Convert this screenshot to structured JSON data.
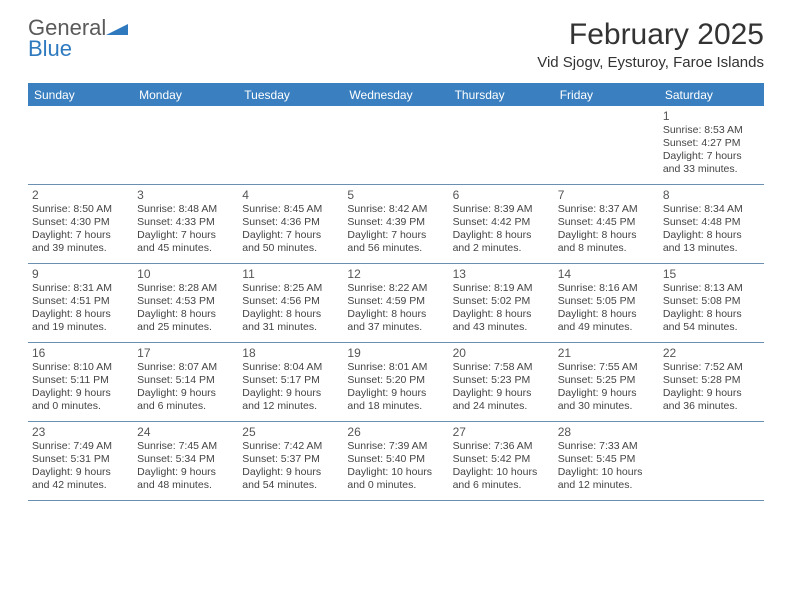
{
  "logo": {
    "text1": "General",
    "text2": "Blue"
  },
  "title": "February 2025",
  "location": "Vid Sjogv, Eysturoy, Faroe Islands",
  "colors": {
    "header_bg": "#3a7fbf",
    "header_text": "#ffffff",
    "divider": "#6a8fb0",
    "logo_gray": "#5a5a5a",
    "logo_blue": "#2f7abf"
  },
  "day_labels": [
    "Sunday",
    "Monday",
    "Tuesday",
    "Wednesday",
    "Thursday",
    "Friday",
    "Saturday"
  ],
  "weeks": [
    [
      null,
      null,
      null,
      null,
      null,
      null,
      {
        "n": "1",
        "sr": "Sunrise: 8:53 AM",
        "ss": "Sunset: 4:27 PM",
        "d1": "Daylight: 7 hours",
        "d2": "and 33 minutes."
      }
    ],
    [
      {
        "n": "2",
        "sr": "Sunrise: 8:50 AM",
        "ss": "Sunset: 4:30 PM",
        "d1": "Daylight: 7 hours",
        "d2": "and 39 minutes."
      },
      {
        "n": "3",
        "sr": "Sunrise: 8:48 AM",
        "ss": "Sunset: 4:33 PM",
        "d1": "Daylight: 7 hours",
        "d2": "and 45 minutes."
      },
      {
        "n": "4",
        "sr": "Sunrise: 8:45 AM",
        "ss": "Sunset: 4:36 PM",
        "d1": "Daylight: 7 hours",
        "d2": "and 50 minutes."
      },
      {
        "n": "5",
        "sr": "Sunrise: 8:42 AM",
        "ss": "Sunset: 4:39 PM",
        "d1": "Daylight: 7 hours",
        "d2": "and 56 minutes."
      },
      {
        "n": "6",
        "sr": "Sunrise: 8:39 AM",
        "ss": "Sunset: 4:42 PM",
        "d1": "Daylight: 8 hours",
        "d2": "and 2 minutes."
      },
      {
        "n": "7",
        "sr": "Sunrise: 8:37 AM",
        "ss": "Sunset: 4:45 PM",
        "d1": "Daylight: 8 hours",
        "d2": "and 8 minutes."
      },
      {
        "n": "8",
        "sr": "Sunrise: 8:34 AM",
        "ss": "Sunset: 4:48 PM",
        "d1": "Daylight: 8 hours",
        "d2": "and 13 minutes."
      }
    ],
    [
      {
        "n": "9",
        "sr": "Sunrise: 8:31 AM",
        "ss": "Sunset: 4:51 PM",
        "d1": "Daylight: 8 hours",
        "d2": "and 19 minutes."
      },
      {
        "n": "10",
        "sr": "Sunrise: 8:28 AM",
        "ss": "Sunset: 4:53 PM",
        "d1": "Daylight: 8 hours",
        "d2": "and 25 minutes."
      },
      {
        "n": "11",
        "sr": "Sunrise: 8:25 AM",
        "ss": "Sunset: 4:56 PM",
        "d1": "Daylight: 8 hours",
        "d2": "and 31 minutes."
      },
      {
        "n": "12",
        "sr": "Sunrise: 8:22 AM",
        "ss": "Sunset: 4:59 PM",
        "d1": "Daylight: 8 hours",
        "d2": "and 37 minutes."
      },
      {
        "n": "13",
        "sr": "Sunrise: 8:19 AM",
        "ss": "Sunset: 5:02 PM",
        "d1": "Daylight: 8 hours",
        "d2": "and 43 minutes."
      },
      {
        "n": "14",
        "sr": "Sunrise: 8:16 AM",
        "ss": "Sunset: 5:05 PM",
        "d1": "Daylight: 8 hours",
        "d2": "and 49 minutes."
      },
      {
        "n": "15",
        "sr": "Sunrise: 8:13 AM",
        "ss": "Sunset: 5:08 PM",
        "d1": "Daylight: 8 hours",
        "d2": "and 54 minutes."
      }
    ],
    [
      {
        "n": "16",
        "sr": "Sunrise: 8:10 AM",
        "ss": "Sunset: 5:11 PM",
        "d1": "Daylight: 9 hours",
        "d2": "and 0 minutes."
      },
      {
        "n": "17",
        "sr": "Sunrise: 8:07 AM",
        "ss": "Sunset: 5:14 PM",
        "d1": "Daylight: 9 hours",
        "d2": "and 6 minutes."
      },
      {
        "n": "18",
        "sr": "Sunrise: 8:04 AM",
        "ss": "Sunset: 5:17 PM",
        "d1": "Daylight: 9 hours",
        "d2": "and 12 minutes."
      },
      {
        "n": "19",
        "sr": "Sunrise: 8:01 AM",
        "ss": "Sunset: 5:20 PM",
        "d1": "Daylight: 9 hours",
        "d2": "and 18 minutes."
      },
      {
        "n": "20",
        "sr": "Sunrise: 7:58 AM",
        "ss": "Sunset: 5:23 PM",
        "d1": "Daylight: 9 hours",
        "d2": "and 24 minutes."
      },
      {
        "n": "21",
        "sr": "Sunrise: 7:55 AM",
        "ss": "Sunset: 5:25 PM",
        "d1": "Daylight: 9 hours",
        "d2": "and 30 minutes."
      },
      {
        "n": "22",
        "sr": "Sunrise: 7:52 AM",
        "ss": "Sunset: 5:28 PM",
        "d1": "Daylight: 9 hours",
        "d2": "and 36 minutes."
      }
    ],
    [
      {
        "n": "23",
        "sr": "Sunrise: 7:49 AM",
        "ss": "Sunset: 5:31 PM",
        "d1": "Daylight: 9 hours",
        "d2": "and 42 minutes."
      },
      {
        "n": "24",
        "sr": "Sunrise: 7:45 AM",
        "ss": "Sunset: 5:34 PM",
        "d1": "Daylight: 9 hours",
        "d2": "and 48 minutes."
      },
      {
        "n": "25",
        "sr": "Sunrise: 7:42 AM",
        "ss": "Sunset: 5:37 PM",
        "d1": "Daylight: 9 hours",
        "d2": "and 54 minutes."
      },
      {
        "n": "26",
        "sr": "Sunrise: 7:39 AM",
        "ss": "Sunset: 5:40 PM",
        "d1": "Daylight: 10 hours",
        "d2": "and 0 minutes."
      },
      {
        "n": "27",
        "sr": "Sunrise: 7:36 AM",
        "ss": "Sunset: 5:42 PM",
        "d1": "Daylight: 10 hours",
        "d2": "and 6 minutes."
      },
      {
        "n": "28",
        "sr": "Sunrise: 7:33 AM",
        "ss": "Sunset: 5:45 PM",
        "d1": "Daylight: 10 hours",
        "d2": "and 12 minutes."
      },
      null
    ]
  ]
}
